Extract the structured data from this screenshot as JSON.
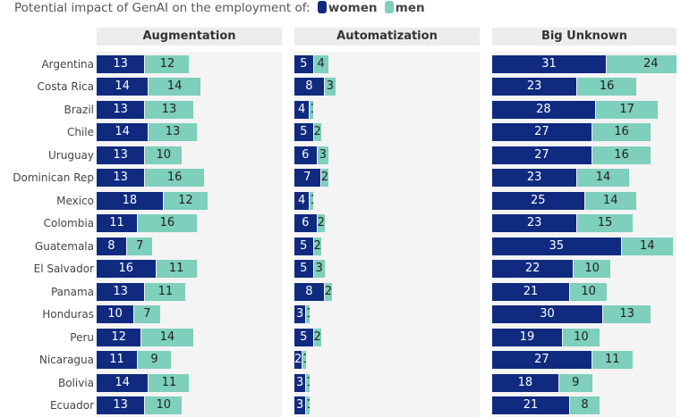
{
  "title": "Potential impact of GenAI on the employment of:",
  "legend": [
    {
      "label": "women",
      "color": "#0f2a7f"
    },
    {
      "label": "men",
      "color": "#7ecfbb"
    }
  ],
  "chart_data": {
    "type": "bar",
    "orientation": "horizontal",
    "stacked": true,
    "title": "Potential impact of GenAI on the employment of:",
    "categories": [
      "Argentina",
      "Costa Rica",
      "Brazil",
      "Chile",
      "Uruguay",
      "Dominican Rep",
      "Mexico",
      "Colombia",
      "Guatemala",
      "El Salvador",
      "Panama",
      "Honduras",
      "Peru",
      "Nicaragua",
      "Bolivia",
      "Ecuador"
    ],
    "legend_position": "top",
    "panels": [
      {
        "title": "Augmentation",
        "series": [
          {
            "name": "women",
            "values": [
              13,
              14,
              13,
              14,
              13,
              13,
              18,
              11,
              8,
              16,
              13,
              10,
              12,
              11,
              14,
              13
            ]
          },
          {
            "name": "men",
            "values": [
              12,
              14,
              13,
              13,
              10,
              16,
              12,
              16,
              7,
              11,
              11,
              7,
              14,
              9,
              11,
              10
            ]
          }
        ]
      },
      {
        "title": "Automatization",
        "series": [
          {
            "name": "women",
            "values": [
              5,
              8,
              4,
              5,
              6,
              7,
              4,
              6,
              5,
              5,
              8,
              3,
              5,
              2,
              3,
              3
            ]
          },
          {
            "name": "men",
            "values": [
              4,
              3,
              1,
              2,
              3,
              2,
              1,
              2,
              2,
              3,
              2,
              1,
              2,
              1,
              1,
              1
            ]
          }
        ]
      },
      {
        "title": "Big Unknown",
        "series": [
          {
            "name": "women",
            "values": [
              31,
              23,
              28,
              27,
              27,
              23,
              25,
              23,
              35,
              22,
              21,
              30,
              19,
              27,
              18,
              21
            ]
          },
          {
            "name": "men",
            "values": [
              24,
              16,
              17,
              16,
              16,
              14,
              14,
              15,
              14,
              10,
              10,
              13,
              10,
              11,
              9,
              8
            ]
          }
        ]
      }
    ]
  }
}
